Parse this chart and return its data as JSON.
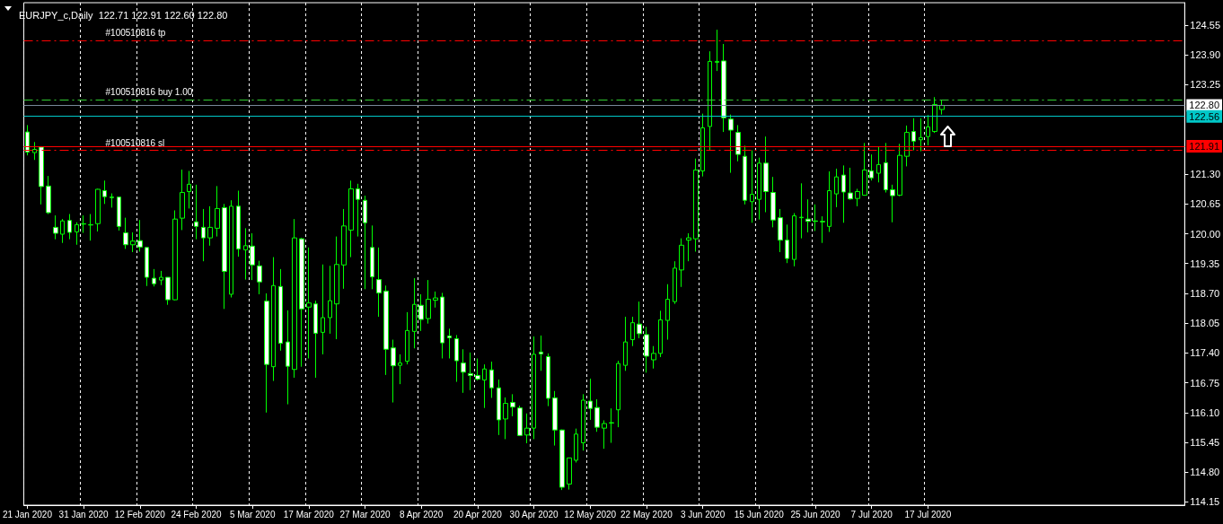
{
  "chart_data": {
    "type": "candlestick",
    "title": "EURJPY_c,Daily  122.71 122.91 122.60 122.80",
    "categories": [
      "21 Jan 2020",
      null,
      null,
      null,
      null,
      null,
      null,
      null,
      "31 Jan 2020",
      null,
      null,
      null,
      null,
      null,
      null,
      null,
      "12 Feb 2020",
      null,
      null,
      null,
      null,
      null,
      null,
      null,
      "24 Feb 2020",
      null,
      null,
      null,
      null,
      null,
      null,
      null,
      "5 Mar 2020",
      null,
      null,
      null,
      null,
      null,
      null,
      null,
      "17 Mar 2020",
      null,
      null,
      null,
      null,
      null,
      null,
      null,
      "27 Mar 2020",
      null,
      null,
      null,
      null,
      null,
      null,
      null,
      "8 Apr 2020",
      null,
      null,
      null,
      null,
      null,
      null,
      null,
      "20 Apr 2020",
      null,
      null,
      null,
      null,
      null,
      null,
      null,
      "30 Apr 2020",
      null,
      null,
      null,
      null,
      null,
      null,
      null,
      "12 May 2020",
      null,
      null,
      null,
      null,
      null,
      null,
      null,
      "22 May 2020",
      null,
      null,
      null,
      null,
      null,
      null,
      null,
      "3 Jun 2020",
      null,
      null,
      null,
      null,
      null,
      null,
      null,
      "15 Jun 2020",
      null,
      null,
      null,
      null,
      null,
      null,
      null,
      "25 Jun 2020",
      null,
      null,
      null,
      null,
      null,
      null,
      null,
      "7 Jul 2020",
      null,
      null,
      null,
      null,
      null,
      null,
      null,
      "17 Jul 2020",
      null,
      null,
      null,
      null,
      null,
      null,
      null,
      null,
      null,
      null,
      null,
      null,
      null,
      null,
      null,
      null,
      null,
      null,
      null,
      null,
      null,
      null,
      null,
      null,
      null,
      null,
      null,
      null,
      null,
      null,
      null,
      null,
      null,
      null,
      null,
      null
    ],
    "color": "#00ff00",
    "ohlc": [
      [
        122.22,
        122.37,
        121.71,
        121.78
      ],
      [
        121.77,
        122.0,
        121.61,
        121.84
      ],
      [
        121.89,
        121.91,
        120.64,
        121.03
      ],
      [
        121.04,
        121.26,
        120.43,
        120.46
      ],
      [
        120.14,
        120.4,
        119.88,
        120.01
      ],
      [
        119.99,
        120.32,
        119.8,
        120.28
      ],
      [
        120.29,
        120.43,
        119.88,
        120.03
      ],
      [
        120.04,
        120.25,
        119.76,
        120.2
      ],
      [
        120.21,
        120.4,
        120.02,
        120.22
      ],
      [
        120.19,
        120.43,
        119.85,
        120.2
      ],
      [
        120.22,
        120.98,
        120.05,
        120.97
      ],
      [
        120.94,
        121.16,
        120.65,
        120.81
      ],
      [
        120.8,
        120.88,
        120.57,
        120.79
      ],
      [
        120.8,
        120.8,
        120.07,
        120.16
      ],
      [
        120.02,
        120.35,
        119.67,
        119.76
      ],
      [
        119.76,
        120.03,
        119.6,
        119.84
      ],
      [
        119.85,
        120.3,
        119.61,
        119.71
      ],
      [
        119.7,
        119.7,
        118.86,
        119.05
      ],
      [
        119.03,
        119.23,
        118.85,
        118.91
      ],
      [
        118.99,
        119.19,
        118.88,
        119.05
      ],
      [
        119.05,
        119.05,
        118.45,
        118.56
      ],
      [
        118.56,
        120.51,
        118.55,
        120.32
      ],
      [
        120.34,
        121.4,
        120.08,
        120.9
      ],
      [
        120.92,
        121.37,
        120.55,
        121.08
      ],
      [
        120.26,
        121.07,
        119.88,
        120.16
      ],
      [
        120.14,
        120.54,
        119.4,
        119.91
      ],
      [
        119.91,
        120.6,
        119.74,
        120.14
      ],
      [
        120.12,
        121.04,
        119.94,
        120.55
      ],
      [
        120.57,
        120.65,
        118.36,
        119.18
      ],
      [
        118.68,
        120.73,
        118.61,
        120.6
      ],
      [
        120.6,
        120.94,
        119.5,
        119.67
      ],
      [
        119.65,
        120.12,
        119.0,
        119.74
      ],
      [
        119.73,
        120.01,
        118.99,
        119.32
      ],
      [
        119.3,
        119.41,
        118.68,
        118.95
      ],
      [
        118.53,
        118.7,
        116.1,
        117.15
      ],
      [
        117.1,
        119.49,
        116.79,
        118.87
      ],
      [
        118.85,
        119.23,
        117.45,
        117.61
      ],
      [
        117.64,
        118.33,
        116.28,
        117.11
      ],
      [
        117.04,
        120.32,
        116.86,
        119.91
      ],
      [
        119.89,
        119.91,
        117.1,
        118.36
      ],
      [
        118.4,
        119.7,
        117.28,
        118.49
      ],
      [
        118.47,
        118.54,
        116.86,
        117.83
      ],
      [
        117.85,
        119.33,
        117.37,
        118.17
      ],
      [
        118.17,
        119.3,
        117.82,
        118.54
      ],
      [
        118.47,
        119.94,
        117.7,
        119.33
      ],
      [
        119.32,
        120.54,
        118.8,
        120.17
      ],
      [
        120.08,
        121.16,
        119.49,
        120.98
      ],
      [
        120.98,
        121.09,
        119.94,
        120.75
      ],
      [
        120.73,
        120.83,
        118.79,
        120.24
      ],
      [
        119.7,
        120.18,
        118.79,
        119.06
      ],
      [
        119.0,
        119.7,
        118.19,
        118.71
      ],
      [
        118.75,
        118.87,
        116.92,
        117.48
      ],
      [
        117.51,
        117.69,
        116.32,
        117.12
      ],
      [
        117.13,
        117.37,
        116.72,
        117.18
      ],
      [
        117.22,
        118.29,
        117.15,
        117.89
      ],
      [
        117.87,
        119.03,
        117.5,
        118.46
      ],
      [
        118.44,
        118.68,
        117.88,
        118.13
      ],
      [
        118.15,
        118.99,
        118.04,
        118.57
      ],
      [
        118.55,
        118.74,
        118.39,
        118.6
      ],
      [
        118.62,
        118.71,
        117.28,
        117.62
      ],
      [
        117.77,
        117.93,
        117.28,
        117.73
      ],
      [
        117.71,
        117.79,
        116.77,
        117.23
      ],
      [
        117.18,
        117.48,
        116.53,
        116.98
      ],
      [
        116.95,
        117.41,
        116.59,
        116.91
      ],
      [
        116.91,
        117.28,
        116.8,
        116.83
      ],
      [
        116.81,
        117.15,
        116.2,
        117.05
      ],
      [
        117.03,
        117.21,
        116.42,
        116.64
      ],
      [
        116.64,
        116.82,
        115.61,
        115.94
      ],
      [
        115.96,
        116.43,
        115.52,
        116.3
      ],
      [
        116.32,
        116.5,
        116.02,
        116.22
      ],
      [
        116.2,
        116.25,
        115.59,
        115.6
      ],
      [
        115.61,
        116.08,
        115.43,
        115.76
      ],
      [
        115.76,
        117.76,
        115.52,
        117.37
      ],
      [
        117.42,
        117.78,
        117.01,
        117.38
      ],
      [
        117.32,
        117.39,
        116.24,
        116.41
      ],
      [
        116.42,
        116.57,
        115.38,
        115.72
      ],
      [
        115.72,
        115.73,
        114.41,
        114.47
      ],
      [
        114.54,
        115.11,
        114.42,
        115.11
      ],
      [
        115.06,
        115.75,
        115.01,
        115.63
      ],
      [
        115.44,
        116.5,
        115.27,
        116.37
      ],
      [
        116.35,
        116.84,
        115.94,
        116.19
      ],
      [
        116.21,
        116.39,
        115.68,
        115.78
      ],
      [
        115.76,
        115.93,
        115.31,
        115.86
      ],
      [
        115.87,
        116.19,
        115.44,
        115.88
      ],
      [
        116.16,
        117.23,
        115.78,
        117.17
      ],
      [
        117.13,
        118.19,
        117.01,
        117.64
      ],
      [
        117.69,
        118.19,
        117.55,
        118.06
      ],
      [
        118.03,
        118.52,
        117.72,
        117.82
      ],
      [
        117.8,
        117.97,
        116.97,
        117.33
      ],
      [
        117.25,
        117.55,
        117.06,
        117.39
      ],
      [
        117.39,
        118.32,
        117.31,
        118.12
      ],
      [
        118.11,
        118.9,
        117.69,
        118.57
      ],
      [
        118.52,
        119.4,
        118.47,
        119.25
      ],
      [
        119.21,
        119.9,
        118.84,
        119.75
      ],
      [
        119.86,
        120.01,
        119.4,
        119.91
      ],
      [
        119.89,
        121.64,
        119.61,
        121.39
      ],
      [
        121.37,
        122.62,
        121.25,
        122.31
      ],
      [
        122.34,
        123.98,
        121.83,
        123.76
      ],
      [
        123.74,
        124.45,
        123.55,
        123.76
      ],
      [
        123.77,
        124.14,
        122.22,
        122.53
      ],
      [
        122.5,
        122.6,
        121.33,
        122.26
      ],
      [
        122.21,
        122.37,
        121.58,
        121.73
      ],
      [
        121.69,
        121.92,
        120.64,
        120.73
      ],
      [
        120.7,
        121.82,
        120.24,
        120.86
      ],
      [
        120.75,
        121.66,
        120.31,
        121.54
      ],
      [
        121.54,
        122.12,
        120.47,
        120.92
      ],
      [
        120.9,
        121.24,
        120.14,
        120.3
      ],
      [
        120.35,
        120.54,
        119.6,
        119.86
      ],
      [
        119.86,
        120.2,
        119.36,
        119.46
      ],
      [
        119.44,
        120.45,
        119.29,
        120.39
      ],
      [
        120.35,
        121.1,
        119.9,
        120.36
      ],
      [
        120.32,
        120.75,
        120.03,
        120.27
      ],
      [
        120.28,
        120.64,
        120.06,
        120.27
      ],
      [
        120.27,
        120.38,
        119.8,
        120.26
      ],
      [
        120.16,
        121.36,
        120.04,
        120.94
      ],
      [
        120.87,
        121.42,
        120.58,
        121.24
      ],
      [
        121.28,
        121.49,
        120.24,
        120.91
      ],
      [
        120.89,
        121.44,
        120.74,
        120.76
      ],
      [
        120.77,
        120.98,
        120.6,
        120.92
      ],
      [
        120.84,
        121.98,
        120.83,
        121.39
      ],
      [
        121.37,
        121.73,
        121.16,
        121.22
      ],
      [
        121.32,
        121.89,
        121.12,
        121.51
      ],
      [
        121.55,
        121.98,
        120.9,
        120.96
      ],
      [
        120.96,
        121.07,
        120.25,
        120.83
      ],
      [
        120.84,
        121.96,
        120.82,
        121.71
      ],
      [
        121.69,
        122.36,
        121.47,
        122.21
      ],
      [
        122.23,
        122.52,
        121.82,
        122.02
      ],
      [
        122.05,
        122.52,
        121.8,
        122.1
      ],
      [
        122.12,
        122.59,
        121.93,
        122.33
      ],
      [
        122.23,
        122.98,
        122.2,
        122.82
      ],
      [
        122.71,
        122.91,
        122.6,
        122.8
      ],
      null,
      null,
      null,
      null,
      null,
      null,
      null,
      null,
      null,
      null,
      null,
      null,
      null,
      null,
      null,
      null,
      null,
      null,
      null,
      null,
      null,
      null,
      null,
      null,
      null,
      null,
      null,
      null,
      null,
      null,
      null,
      null,
      null,
      null
    ],
    "ylim": [
      114.08,
      125.04
    ],
    "yticks": [
      {
        "value": 114.15,
        "label": "114.15"
      },
      {
        "value": 114.8,
        "label": "114.80"
      },
      {
        "value": 115.45,
        "label": "115.45"
      },
      {
        "value": 116.1,
        "label": "116.10"
      },
      {
        "value": 116.75,
        "label": "116.75"
      },
      {
        "value": 117.4,
        "label": "117.40"
      },
      {
        "value": 118.05,
        "label": "118.05"
      },
      {
        "value": 118.7,
        "label": "118.70"
      },
      {
        "value": 119.35,
        "label": "119.35"
      },
      {
        "value": 120,
        "label": "120.00"
      },
      {
        "value": 120.65,
        "label": "120.65"
      },
      {
        "value": 121.3,
        "label": "121.30"
      },
      {
        "value": 123.25,
        "label": "123.25"
      },
      {
        "value": 123.9,
        "label": "123.90"
      },
      {
        "value": 124.55,
        "label": "124.55"
      }
    ],
    "ref_lines": [
      {
        "axis": "y",
        "value": 124.22,
        "label": "#100510816 tp",
        "color": "#ff0000",
        "line_style": "dashed"
      },
      {
        "axis": "y",
        "value": 122.93,
        "label": "#100510816 buy 1.00",
        "color": "#32cd32",
        "line_style": "dashed"
      },
      {
        "axis": "y",
        "value": 121.83,
        "label": "#100510816 sl",
        "color": "#ff0000",
        "line_style": "dashed"
      },
      {
        "axis": "y",
        "value": 122.8,
        "label": "122.80",
        "color": "#778899",
        "line_style": "solid"
      },
      {
        "axis": "y",
        "value": 122.56,
        "label": "122.56",
        "color": "#00c8c8",
        "line_style": "solid"
      },
      {
        "axis": "y",
        "value": 121.91,
        "label": "121.91",
        "color": "#ff0000",
        "line_style": "solid"
      }
    ],
    "grid": "x"
  }
}
